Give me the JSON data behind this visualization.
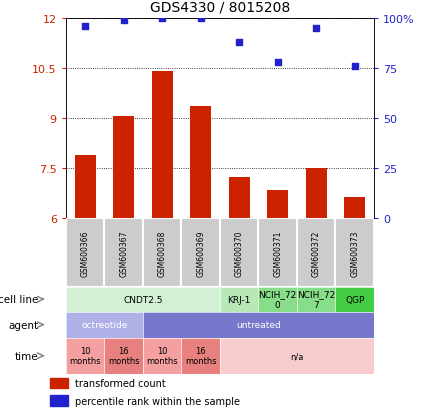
{
  "title": "GDS4330 / 8015208",
  "samples": [
    "GSM600366",
    "GSM600367",
    "GSM600368",
    "GSM600369",
    "GSM600370",
    "GSM600371",
    "GSM600372",
    "GSM600373"
  ],
  "bar_values": [
    7.9,
    9.05,
    10.4,
    9.35,
    7.25,
    6.85,
    7.5,
    6.65
  ],
  "scatter_values": [
    96,
    99,
    100,
    100,
    88,
    78,
    95,
    76
  ],
  "bar_color": "#cc2200",
  "scatter_color": "#2222cc",
  "ylim_left": [
    6,
    12
  ],
  "ylim_right": [
    0,
    100
  ],
  "yticks_left": [
    6,
    7.5,
    9,
    10.5,
    12
  ],
  "yticks_right": [
    0,
    25,
    50,
    75,
    100
  ],
  "ytick_labels_right": [
    "0",
    "25",
    "50",
    "75",
    "100%"
  ],
  "cell_line_groups": [
    {
      "label": "CNDT2.5",
      "span": [
        0,
        4
      ],
      "color": "#d4f0d4"
    },
    {
      "label": "KRJ-1",
      "span": [
        4,
        5
      ],
      "color": "#b8e8b8"
    },
    {
      "label": "NCIH_72\n0",
      "span": [
        5,
        6
      ],
      "color": "#88dd88"
    },
    {
      "label": "NCIH_72\n7",
      "span": [
        6,
        7
      ],
      "color": "#88dd88"
    },
    {
      "label": "QGP",
      "span": [
        7,
        8
      ],
      "color": "#44cc44"
    }
  ],
  "agent_groups": [
    {
      "label": "octreotide",
      "span": [
        0,
        2
      ],
      "color": "#b0b0e8"
    },
    {
      "label": "untreated",
      "span": [
        2,
        8
      ],
      "color": "#7777cc"
    }
  ],
  "time_groups": [
    {
      "label": "10\nmonths",
      "span": [
        0,
        1
      ],
      "color": "#f4a0a0"
    },
    {
      "label": "16\nmonths",
      "span": [
        1,
        2
      ],
      "color": "#e88080"
    },
    {
      "label": "10\nmonths",
      "span": [
        2,
        3
      ],
      "color": "#f4a0a0"
    },
    {
      "label": "16\nmonths",
      "span": [
        3,
        4
      ],
      "color": "#e88080"
    },
    {
      "label": "n/a",
      "span": [
        4,
        8
      ],
      "color": "#f8cccc"
    }
  ],
  "row_labels": [
    "cell line",
    "agent",
    "time"
  ],
  "legend_bar_label": "transformed count",
  "legend_scatter_label": "percentile rank within the sample",
  "background_color": "#ffffff",
  "sample_box_color": "#cccccc",
  "sample_box_edge": "#ffffff"
}
